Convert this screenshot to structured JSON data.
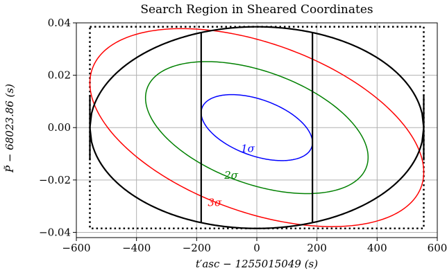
{
  "chart_data": {
    "type": "line",
    "title": "Search Region in Sheared Coordinates",
    "xlabel": "t′asc − 1255015049 (s)",
    "ylabel": "P̃ − 68023.86 (s)",
    "xlim": [
      -600,
      600
    ],
    "ylim": [
      -0.042,
      0.04
    ],
    "grid": true,
    "x_ticks": [
      -600,
      -400,
      -200,
      0,
      200,
      400,
      600
    ],
    "x_tick_labels": [
      "−600",
      "−400",
      "−200",
      "0",
      "200",
      "400",
      "600"
    ],
    "y_ticks": [
      -0.04,
      -0.02,
      0.0,
      0.02,
      0.04
    ],
    "y_tick_labels": [
      "−0.04",
      "−0.02",
      "0.00",
      "0.02",
      "0.04"
    ],
    "sigma_ellipses": [
      {
        "label": "1σ",
        "k": 1,
        "color": "#0000ff",
        "label_x": -30,
        "label_y": -0.0093
      },
      {
        "label": "2σ",
        "k": 2,
        "color": "#008000",
        "label_x": -85,
        "label_y": -0.0195
      },
      {
        "label": "3σ",
        "k": 3,
        "color": "#ff0000",
        "label_x": -140,
        "label_y": -0.03
      }
    ],
    "ellipse_params": {
      "sigma_x": 185,
      "sigma_y": 0.0126,
      "rho": -0.45
    },
    "search_region": {
      "a": 555,
      "b": 0.0385,
      "x_min": -555,
      "x_max": 555,
      "inner_x": [
        -185,
        185
      ],
      "color": "#000000"
    },
    "bounding_box": {
      "x_min": -555,
      "x_max": 555,
      "y_min": -0.0385,
      "y_max": 0.0385,
      "style": "dotted"
    }
  }
}
